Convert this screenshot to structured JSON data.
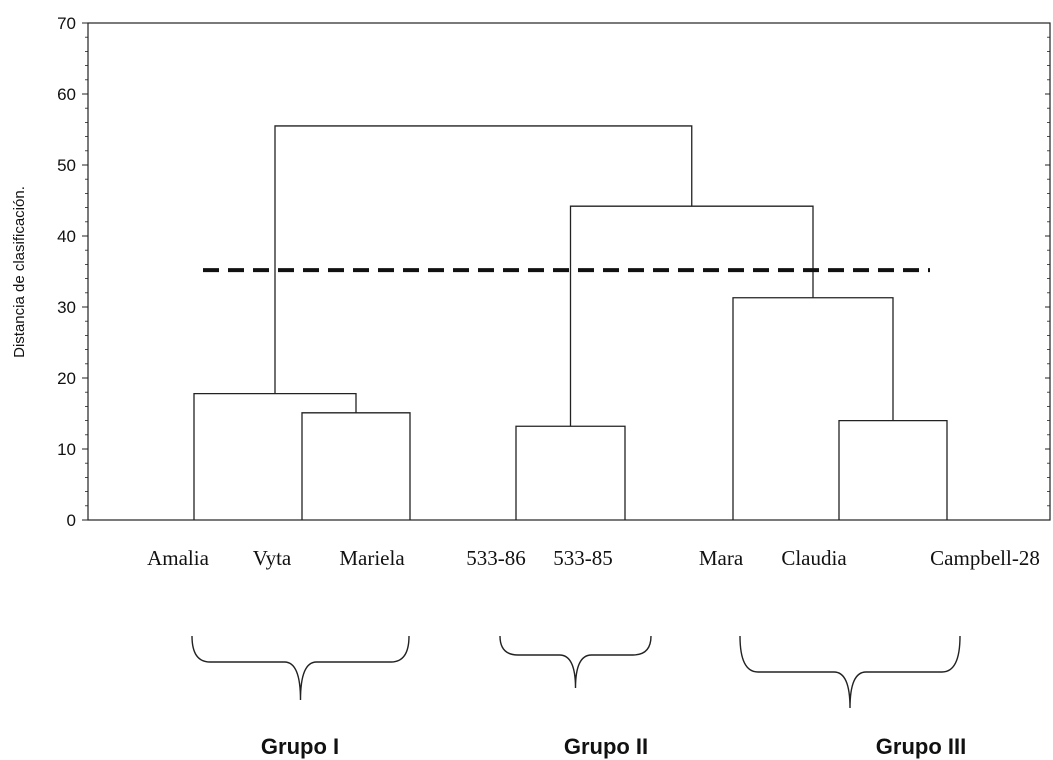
{
  "chart_data": {
    "type": "dendrogram",
    "title": "",
    "xlabel": "",
    "ylabel": "Distancia de clasificación.",
    "ylim": [
      0,
      70
    ],
    "yticks": [
      0,
      10,
      20,
      30,
      40,
      50,
      60,
      70
    ],
    "grid": false,
    "leaves": [
      "Amalia",
      "Vyta",
      "Mariela",
      "533-86",
      "533-85",
      "Mara",
      "Claudia",
      "Campbell-28"
    ],
    "merges": [
      {
        "left": "533-86",
        "right": "533-85",
        "height": 13.2
      },
      {
        "left": "Claudia",
        "right": "Campbell-28",
        "height": 14.0
      },
      {
        "left": "Vyta",
        "right": "Mariela",
        "height": 15.1
      },
      {
        "left": "Amalia",
        "right": "Vyta+Mariela",
        "height": 17.8
      },
      {
        "left": "Mara",
        "right": "Claudia+Campbell-28",
        "height": 31.3
      },
      {
        "left": "533-86+533-85",
        "right": "Mara+Claudia+Campbell-28",
        "height": 44.2
      },
      {
        "left": "Amalia+Vyta+Mariela",
        "right": "533-86+533-85+Mara+Claudia+Campbell-28",
        "height": 55.5
      }
    ],
    "cut_line": 35.2,
    "groups": [
      {
        "label": "Grupo I",
        "members": [
          "Amalia",
          "Vyta",
          "Mariela"
        ]
      },
      {
        "label": "Grupo II",
        "members": [
          "533-86",
          "533-85"
        ]
      },
      {
        "label": "Grupo III",
        "members": [
          "Mara",
          "Claudia",
          "Campbell-28"
        ]
      }
    ]
  }
}
